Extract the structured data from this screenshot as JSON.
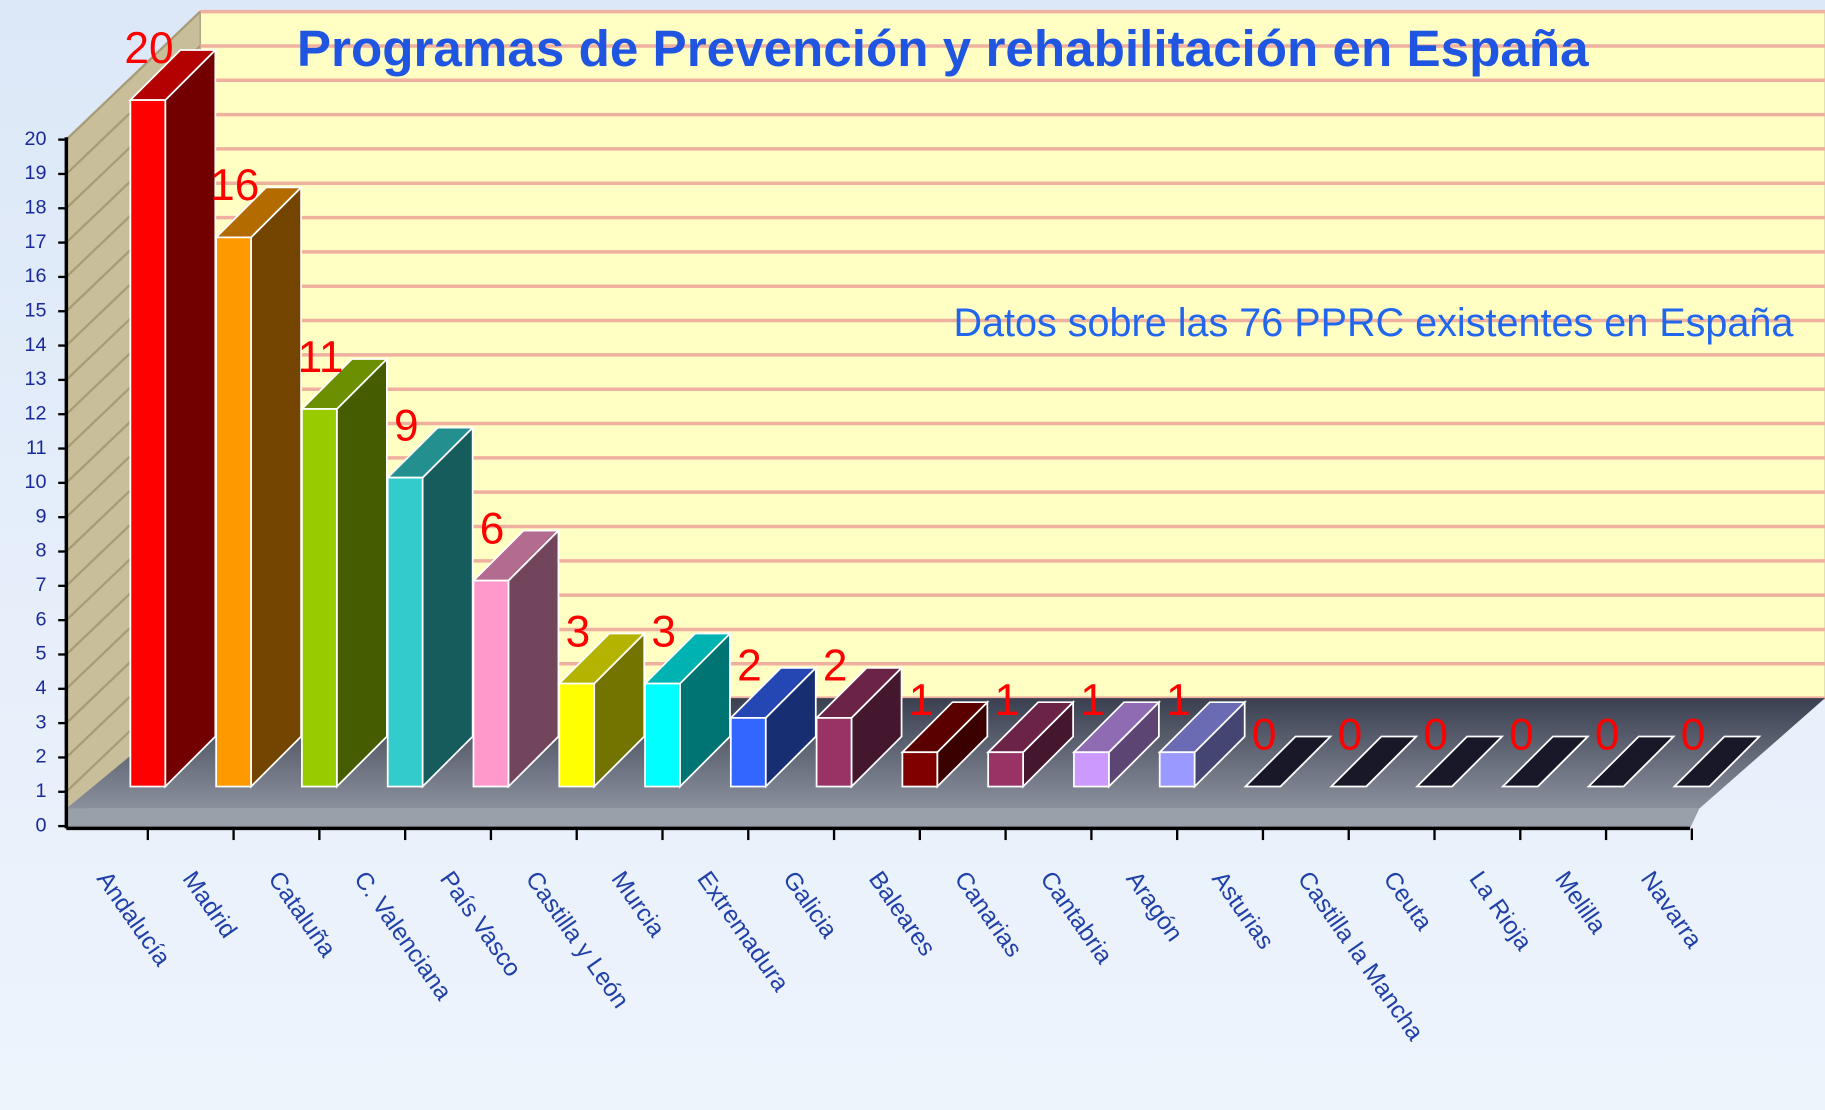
{
  "chart_data": {
    "type": "bar3d",
    "title": "Programas de Prevención y rehabilitación  en España",
    "subtitle": "Datos sobre las 76 PPRC existentes en España",
    "categories": [
      "Andalucía",
      "Madrid",
      "Cataluña",
      "C. Valenciana",
      "País Vasco",
      "Castilla y León",
      "Murcia",
      "Extremadura",
      "Galicia",
      "Baleares",
      "Canarias",
      "Cantabria",
      "Aragón",
      "Asturias",
      "Castilla la Mancha",
      "Ceuta",
      "La Rioja",
      "Melilla",
      "Navarra"
    ],
    "values": [
      20,
      16,
      11,
      9,
      6,
      3,
      3,
      2,
      2,
      1,
      1,
      1,
      1,
      0,
      0,
      0,
      0,
      0,
      0
    ],
    "colors": [
      "#ff0000",
      "#ff9900",
      "#99cc00",
      "#33cccc",
      "#ff99cc",
      "#ffff00",
      "#00ffff",
      "#3366ff",
      "#993366",
      "#800000",
      "#993366",
      "#cc99ff",
      "#9999ff",
      "#22223a",
      "#22223a",
      "#22223a",
      "#22223a",
      "#22223a",
      "#22223a"
    ],
    "ylim": [
      0,
      20
    ],
    "yticks": [
      0,
      1,
      2,
      3,
      4,
      5,
      6,
      7,
      8,
      9,
      10,
      11,
      12,
      13,
      14,
      15,
      16,
      17,
      18,
      19,
      20
    ],
    "grid": true
  }
}
